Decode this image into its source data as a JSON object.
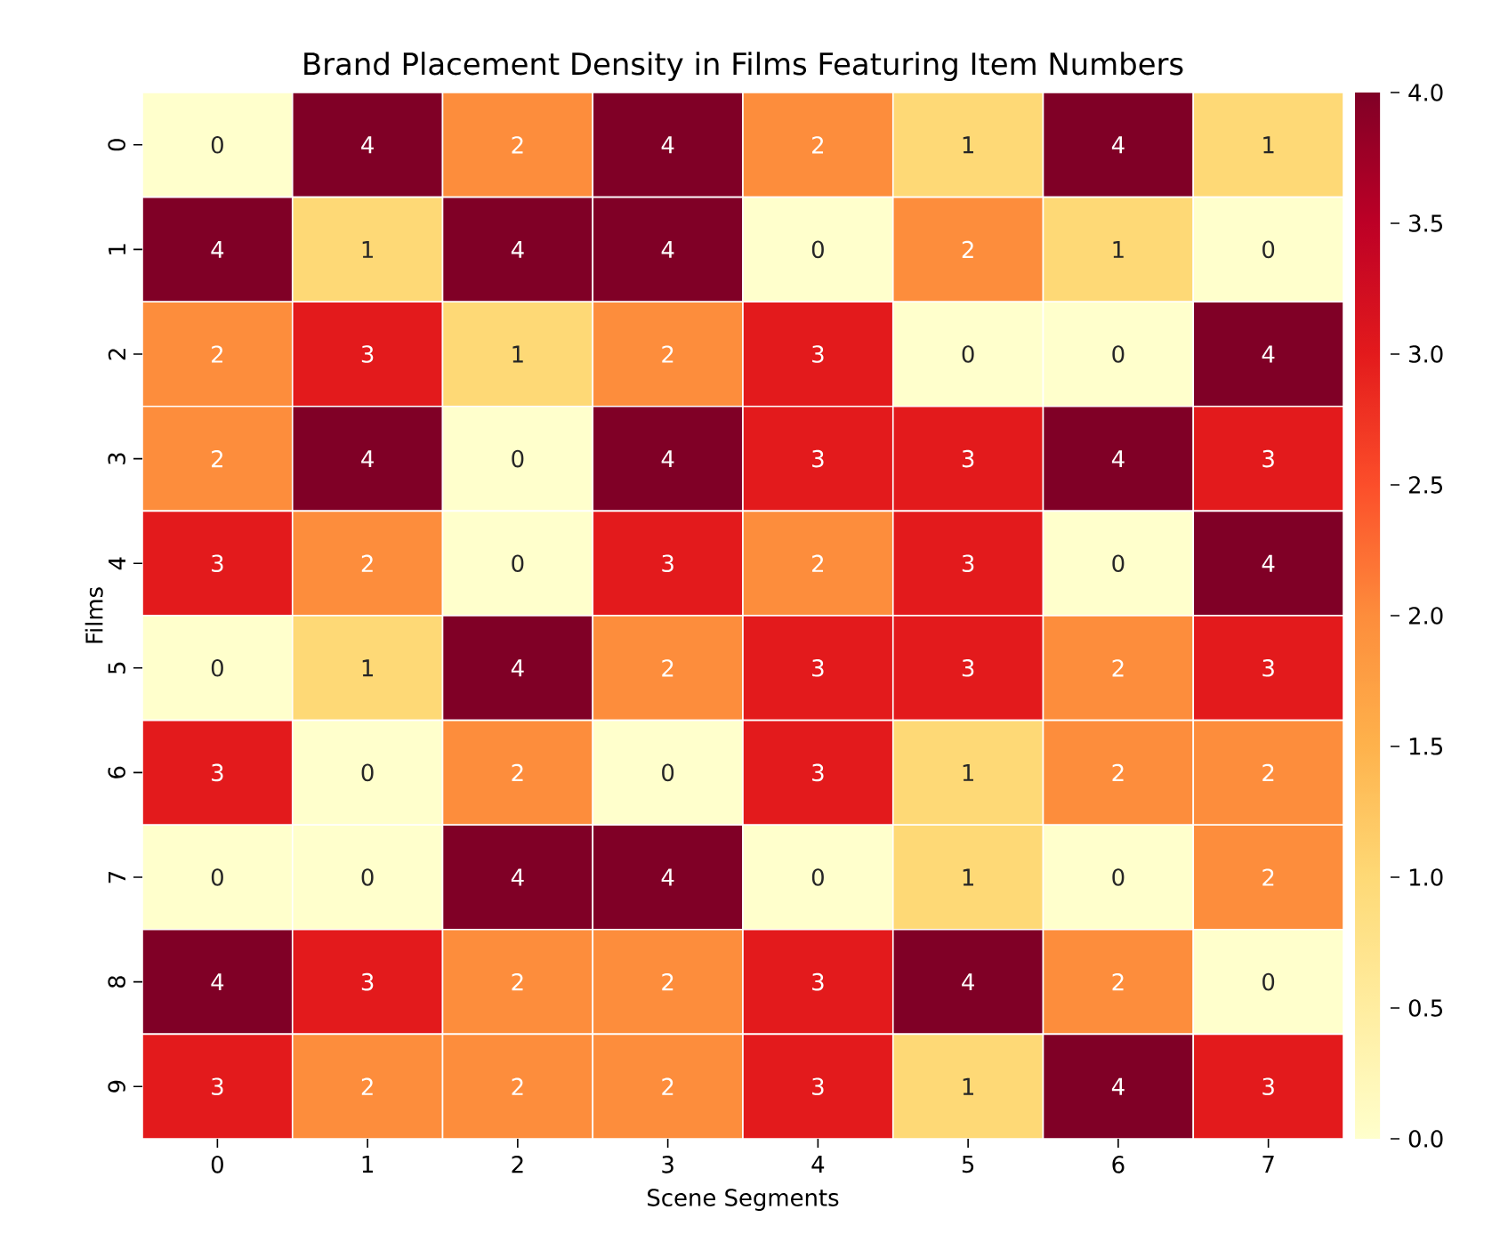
{
  "chart_data": {
    "type": "heatmap",
    "title": "Brand Placement Density in Films Featuring Item Numbers",
    "xlabel": "Scene Segments",
    "ylabel": "Films",
    "categories": [
      "0",
      "1",
      "2",
      "3",
      "4",
      "5",
      "6",
      "7"
    ],
    "y_categories": [
      "0",
      "1",
      "2",
      "3",
      "4",
      "5",
      "6",
      "7",
      "8",
      "9"
    ],
    "cells": [
      [
        0,
        4,
        2,
        4,
        2,
        1,
        4,
        1
      ],
      [
        4,
        1,
        4,
        4,
        0,
        2,
        1,
        0
      ],
      [
        2,
        3,
        1,
        2,
        3,
        0,
        0,
        4
      ],
      [
        2,
        4,
        0,
        4,
        3,
        3,
        4,
        3
      ],
      [
        3,
        2,
        0,
        3,
        2,
        3,
        0,
        4
      ],
      [
        0,
        1,
        4,
        2,
        3,
        3,
        2,
        3
      ],
      [
        3,
        0,
        2,
        0,
        3,
        1,
        2,
        2
      ],
      [
        0,
        0,
        4,
        4,
        0,
        1,
        0,
        2
      ],
      [
        4,
        3,
        2,
        2,
        3,
        4,
        2,
        0
      ],
      [
        3,
        2,
        2,
        2,
        3,
        1,
        4,
        3
      ]
    ],
    "data_labels": true,
    "clim": [
      0,
      4
    ],
    "cticks": [
      {
        "value": 0,
        "label": "0.0"
      },
      {
        "value": 0.5,
        "label": "0.5"
      },
      {
        "value": 1,
        "label": "1.0"
      },
      {
        "value": 1.5,
        "label": "1.5"
      },
      {
        "value": 2,
        "label": "2.0"
      },
      {
        "value": 2.5,
        "label": "2.5"
      },
      {
        "value": 3,
        "label": "3.0"
      },
      {
        "value": 3.5,
        "label": "3.5"
      },
      {
        "value": 4,
        "label": "4.0"
      }
    ]
  }
}
